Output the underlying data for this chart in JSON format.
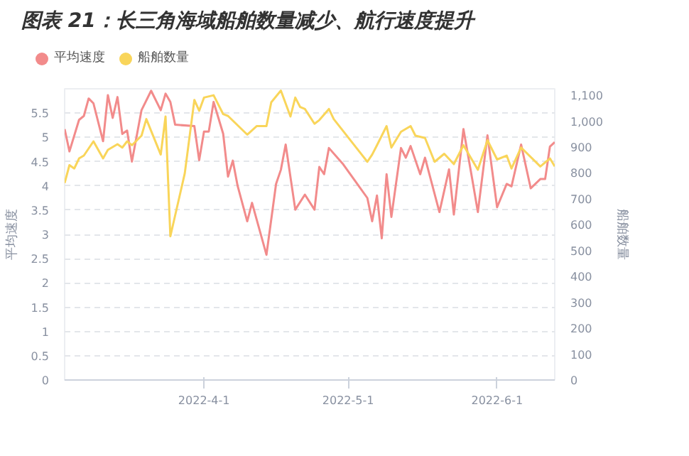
{
  "chart_data": {
    "type": "line",
    "title": "图表 21：长三角海域船舶数量减少、航行速度提升",
    "ylabel": "平均速度",
    "y2label": "船舶数量",
    "xlim": [
      "2022-03-03",
      "2022-06-13"
    ],
    "xticks": [
      {
        "value": "2022-04-01",
        "label": "2022-4-1"
      },
      {
        "value": "2022-05-01",
        "label": "2022-5-1"
      },
      {
        "value": "2022-06-01",
        "label": "2022-6-1"
      }
    ],
    "ylim": [
      0,
      6
    ],
    "yticks": [
      0,
      0.5,
      1,
      1.5,
      2,
      2.5,
      3,
      3.5,
      4,
      4.5,
      5,
      5.5
    ],
    "y2lim": [
      0,
      1125
    ],
    "y2ticks": [
      0,
      100,
      200,
      300,
      400,
      500,
      600,
      700,
      800,
      900,
      {
        "value": 1000,
        "label": "1,000"
      },
      {
        "value": 1100,
        "label": "1,100"
      }
    ],
    "grid": "y",
    "legend": "top left",
    "line_style": "solid",
    "series": [
      {
        "name": "平均速度",
        "color": "#f28b8b",
        "x": [
          "2022-03-03",
          "2022-03-04",
          "2022-03-06",
          "2022-03-07",
          "2022-03-08",
          "2022-03-09",
          "2022-03-11",
          "2022-03-12",
          "2022-03-13",
          "2022-03-14",
          "2022-03-15",
          "2022-03-16",
          "2022-03-17",
          "2022-03-19",
          "2022-03-21",
          "2022-03-23",
          "2022-03-24",
          "2022-03-25",
          "2022-03-26",
          "2022-03-30",
          "2022-03-31",
          "2022-04-01",
          "2022-04-02",
          "2022-04-03",
          "2022-04-05",
          "2022-04-06",
          "2022-04-07",
          "2022-04-08",
          "2022-04-10",
          "2022-04-11",
          "2022-04-14",
          "2022-04-16",
          "2022-04-17",
          "2022-04-18",
          "2022-04-20",
          "2022-04-22",
          "2022-04-24",
          "2022-04-25",
          "2022-04-26",
          "2022-04-27",
          "2022-04-30",
          "2022-05-05",
          "2022-05-06",
          "2022-05-07",
          "2022-05-08",
          "2022-05-09",
          "2022-05-10",
          "2022-05-12",
          "2022-05-13",
          "2022-05-14",
          "2022-05-16",
          "2022-05-17",
          "2022-05-20",
          "2022-05-22",
          "2022-05-23",
          "2022-05-25",
          "2022-05-27",
          "2022-05-28",
          "2022-05-30",
          "2022-06-01",
          "2022-06-03",
          "2022-06-04",
          "2022-06-06",
          "2022-06-08",
          "2022-06-10",
          "2022-06-11",
          "2022-06-12",
          "2022-06-13"
        ],
        "values": [
          5.17,
          4.71,
          5.36,
          5.44,
          5.8,
          5.7,
          4.92,
          5.87,
          5.4,
          5.83,
          5.07,
          5.14,
          4.5,
          5.56,
          5.96,
          5.56,
          5.9,
          5.73,
          5.26,
          5.23,
          4.53,
          5.12,
          5.12,
          5.73,
          5.07,
          4.19,
          4.52,
          4.0,
          3.27,
          3.65,
          2.58,
          4.04,
          4.33,
          4.85,
          3.51,
          3.82,
          3.51,
          4.39,
          4.24,
          4.78,
          4.44,
          3.75,
          3.27,
          3.8,
          2.92,
          4.24,
          3.36,
          4.78,
          4.58,
          4.82,
          4.24,
          4.58,
          3.46,
          4.34,
          3.41,
          5.17,
          4.04,
          3.46,
          5.04,
          3.56,
          4.04,
          3.99,
          4.85,
          3.95,
          4.14,
          4.14,
          4.81,
          4.9
        ]
      },
      {
        "name": "船舶数量",
        "color": "#f9d55a",
        "axis": "y2",
        "x": [
          "2022-03-03",
          "2022-03-04",
          "2022-03-05",
          "2022-03-06",
          "2022-03-07",
          "2022-03-09",
          "2022-03-11",
          "2022-03-12",
          "2022-03-14",
          "2022-03-15",
          "2022-03-16",
          "2022-03-17",
          "2022-03-19",
          "2022-03-20",
          "2022-03-23",
          "2022-03-24",
          "2022-03-25",
          "2022-03-28",
          "2022-03-30",
          "2022-03-31",
          "2022-04-01",
          "2022-04-03",
          "2022-04-05",
          "2022-04-06",
          "2022-04-10",
          "2022-04-12",
          "2022-04-14",
          "2022-04-15",
          "2022-04-17",
          "2022-04-19",
          "2022-04-20",
          "2022-04-21",
          "2022-04-22",
          "2022-04-24",
          "2022-04-25",
          "2022-04-27",
          "2022-04-28",
          "2022-05-05",
          "2022-05-06",
          "2022-05-07",
          "2022-05-09",
          "2022-05-10",
          "2022-05-12",
          "2022-05-14",
          "2022-05-15",
          "2022-05-17",
          "2022-05-19",
          "2022-05-21",
          "2022-05-23",
          "2022-05-25",
          "2022-05-28",
          "2022-05-30",
          "2022-06-01",
          "2022-06-03",
          "2022-06-04",
          "2022-06-06",
          "2022-06-10",
          "2022-06-12",
          "2022-06-13"
        ],
        "values": [
          761,
          830,
          817,
          856,
          867,
          922,
          856,
          889,
          911,
          898,
          922,
          907,
          944,
          1008,
          871,
          1018,
          555,
          798,
          1082,
          1040,
          1091,
          1100,
          1027,
          1020,
          948,
          981,
          981,
          1073,
          1118,
          1018,
          1091,
          1055,
          1047,
          990,
          1004,
          1047,
          1008,
          843,
          871,
          907,
          981,
          898,
          959,
          981,
          944,
          935,
          843,
          874,
          834,
          907,
          812,
          926,
          852,
          867,
          817,
          898,
          825,
          856,
          825
        ]
      }
    ]
  }
}
